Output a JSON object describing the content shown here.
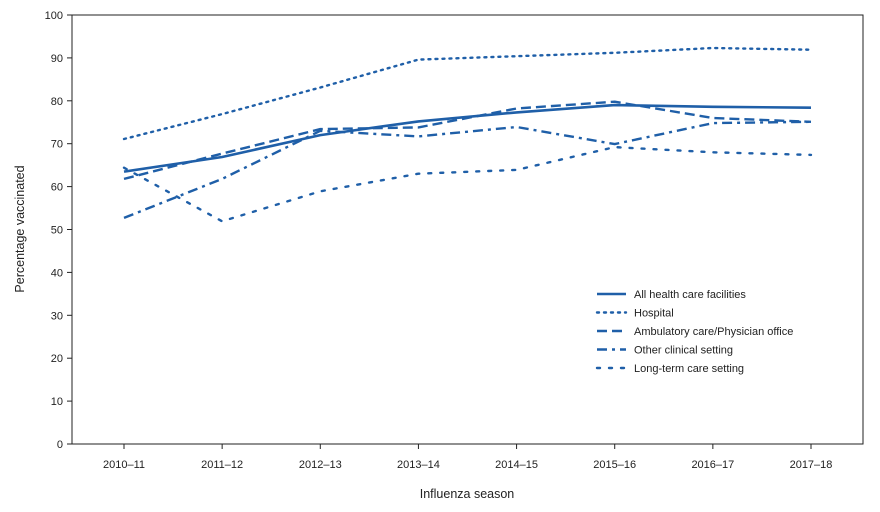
{
  "chart_data": {
    "type": "line",
    "title": "",
    "xlabel": "Influenza season",
    "ylabel": "Percentage vaccinated",
    "ylim": [
      0,
      100
    ],
    "yticks": [
      0,
      10,
      20,
      30,
      40,
      50,
      60,
      70,
      80,
      90,
      100
    ],
    "categories": [
      "2010–11",
      "2011–12",
      "2012–13",
      "2013–14",
      "2014–15",
      "2015–16",
      "2016–17",
      "2017–18"
    ],
    "grid": false,
    "legend_position": "right",
    "color": "#1f5fa8",
    "series": [
      {
        "name": "All health care facilities",
        "style": "solid",
        "values": [
          63.5,
          66.9,
          72.0,
          75.2,
          77.3,
          79.0,
          78.6,
          78.4
        ]
      },
      {
        "name": "Hospital",
        "style": "dotted",
        "values": [
          71.1,
          76.9,
          83.1,
          89.6,
          90.4,
          91.2,
          92.3,
          91.9
        ]
      },
      {
        "name": "Ambulatory care/Physician office",
        "style": "dashed",
        "values": [
          61.8,
          67.7,
          73.4,
          73.8,
          78.2,
          79.8,
          76.0,
          75.1
        ]
      },
      {
        "name": "Other clinical setting",
        "style": "dashdot",
        "values": [
          52.7,
          61.8,
          73.0,
          71.7,
          73.9,
          69.9,
          74.8,
          75.1
        ]
      },
      {
        "name": "Long-term care setting",
        "style": "spaced-dot",
        "values": [
          64.4,
          51.9,
          58.9,
          63.0,
          63.9,
          69.2,
          68.0,
          67.4
        ]
      }
    ]
  }
}
